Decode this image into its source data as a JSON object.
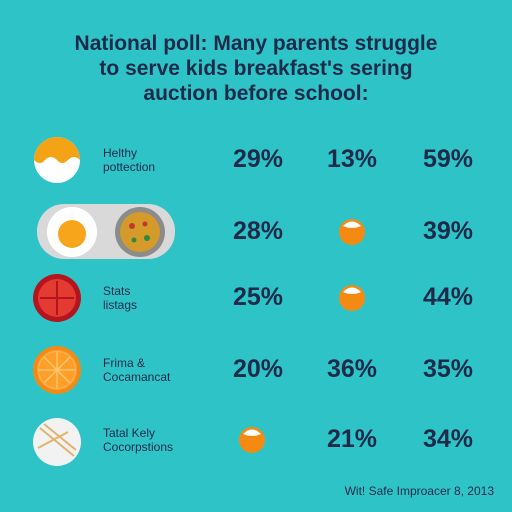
{
  "title": [
    "National poll: Many parents struggle",
    "to serve kids breakfast's sering",
    "auction before school:"
  ],
  "rows": [
    {
      "label": [
        "Helthy",
        "pottection"
      ],
      "cells": [
        "29%",
        "13%",
        "59%"
      ]
    },
    {
      "label": null,
      "cells": [
        "28%",
        null,
        "39%"
      ]
    },
    {
      "label": [
        "Stats",
        "listags"
      ],
      "cells": [
        "25%",
        null,
        "44%"
      ]
    },
    {
      "label": [
        "Frima &",
        "Cocamancat"
      ],
      "cells": [
        "20%",
        "36%",
        "35%"
      ]
    },
    {
      "label": [
        "Tatal Kely",
        "Cocorpstions"
      ],
      "cells": [
        null,
        "21%",
        "34%"
      ]
    }
  ],
  "footer": "Wit! Safe Improacer 8, 2013"
}
